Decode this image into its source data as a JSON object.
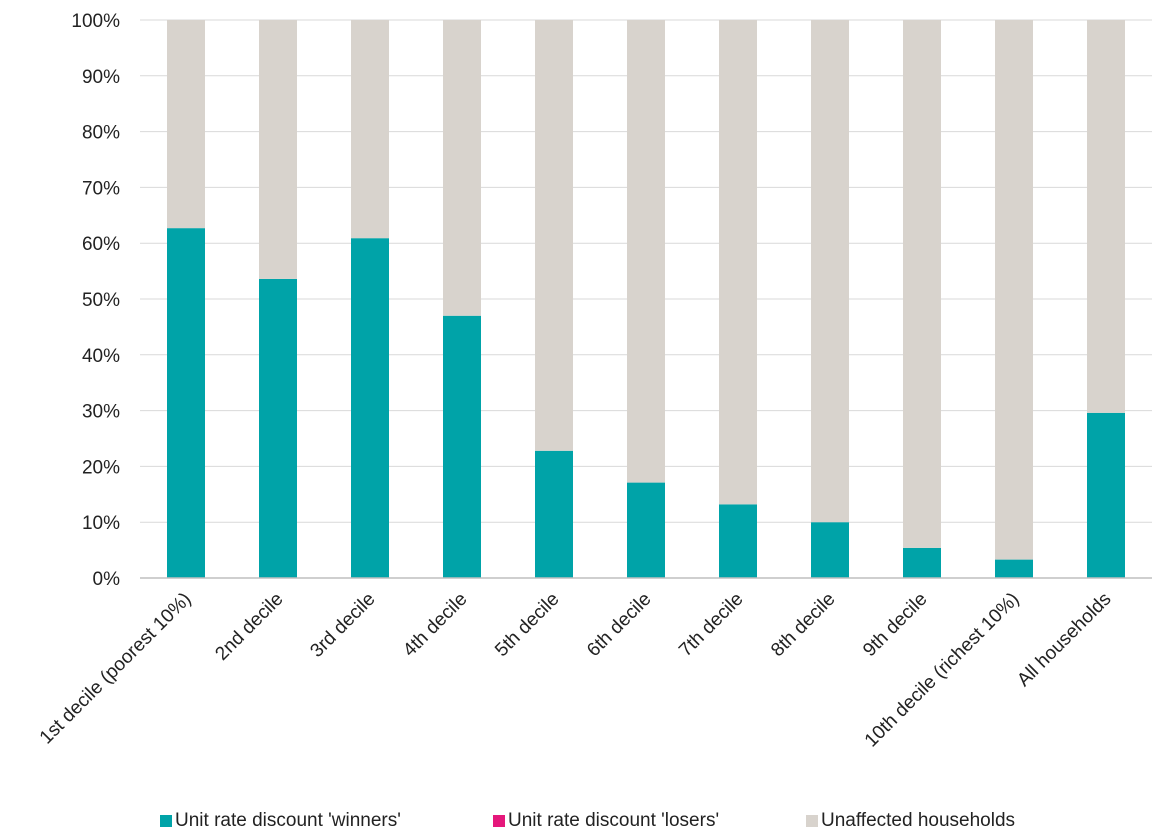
{
  "chart_data": {
    "type": "bar",
    "stacked": true,
    "title": "",
    "xlabel": "",
    "ylabel": "",
    "ylim": [
      0,
      100
    ],
    "y_ticks": [
      "0%",
      "10%",
      "20%",
      "30%",
      "40%",
      "50%",
      "60%",
      "70%",
      "80%",
      "90%",
      "100%"
    ],
    "y_tick_values": [
      0,
      10,
      20,
      30,
      40,
      50,
      60,
      70,
      80,
      90,
      100
    ],
    "grid": true,
    "legend_position": "bottom",
    "categories": [
      "1st decile (poorest 10%)",
      "2nd decile",
      "3rd decile",
      "4th decile",
      "5th decile",
      "6th decile",
      "7th decile",
      "8th decile",
      "9th decile",
      "10th decile (richest 10%)",
      "All households"
    ],
    "series": [
      {
        "name": "Unit rate discount 'winners'",
        "color": "#00a3a8",
        "values": [
          62.7,
          53.6,
          60.9,
          47.0,
          22.8,
          17.1,
          13.2,
          10.0,
          5.4,
          3.3,
          29.6
        ]
      },
      {
        "name": "Unit rate discount 'losers'",
        "color": "#e5177b",
        "values": [
          0,
          0,
          0,
          0,
          0,
          0,
          0,
          0,
          0,
          0,
          0
        ]
      },
      {
        "name": "Unaffected households",
        "color": "#d8d3cd",
        "values": [
          37.3,
          46.4,
          39.1,
          53.0,
          77.2,
          82.9,
          86.8,
          90.0,
          94.6,
          96.7,
          70.4
        ]
      }
    ]
  }
}
